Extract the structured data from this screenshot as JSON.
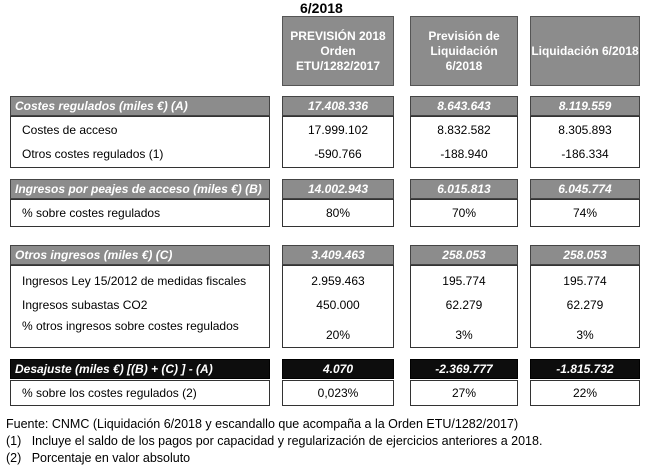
{
  "title": "6/2018",
  "headers": {
    "prevision_2018": "PREVISIÓN 2018 Orden ETU/1282/2017",
    "prevision_liq": "Previsión de Liquidación 6/2018",
    "liquidacion": "Liquidación 6/2018"
  },
  "sections": {
    "costes": {
      "label": "Costes regulados (miles €) (A)",
      "values": [
        "17.408.336",
        "8.643.643",
        "8.119.559"
      ],
      "rows": [
        {
          "label": "Costes de acceso",
          "values": [
            "17.999.102",
            "8.832.582",
            "8.305.893"
          ]
        },
        {
          "label": "Otros costes regulados (1)",
          "values": [
            "-590.766",
            "-188.940",
            "-186.334"
          ]
        }
      ]
    },
    "ingresos": {
      "label": "Ingresos por peajes de acceso (miles €) (B)",
      "values": [
        "14.002.943",
        "6.015.813",
        "6.045.774"
      ],
      "rows": [
        {
          "label": "% sobre costes regulados",
          "values": [
            "80%",
            "70%",
            "74%"
          ]
        }
      ]
    },
    "otros": {
      "label": "Otros ingresos (miles €) (C)",
      "values": [
        "3.409.463",
        "258.053",
        "258.053"
      ],
      "rows": [
        {
          "label": "Ingresos Ley 15/2012 de medidas fiscales",
          "values": [
            "2.959.463",
            "195.774",
            "195.774"
          ]
        },
        {
          "label": "Ingresos subastas CO2",
          "values": [
            "450.000",
            "62.279",
            "62.279"
          ]
        },
        {
          "label": "% otros ingresos sobre costes regulados",
          "values": [
            "20%",
            "3%",
            "3%"
          ]
        }
      ]
    },
    "desajuste": {
      "label": "Desajuste (miles €) [(B) + (C) ] - (A)",
      "values": [
        "4.070",
        "-2.369.777",
        "-1.815.732"
      ],
      "rows": [
        {
          "label": "% sobre los costes regulados (2)",
          "values": [
            "0,023%",
            "27%",
            "22%"
          ]
        }
      ]
    }
  },
  "footnotes": {
    "source": "Fuente: CNMC (Liquidación 6/2018 y escandallo que acompaña a la Orden ETU/1282/2017)",
    "note1": "(1)   Incluye el saldo de los pagos por capacidad y regularización de ejercicios anteriores a 2018.",
    "note2": "(2)   Porcentaje en valor absoluto"
  }
}
